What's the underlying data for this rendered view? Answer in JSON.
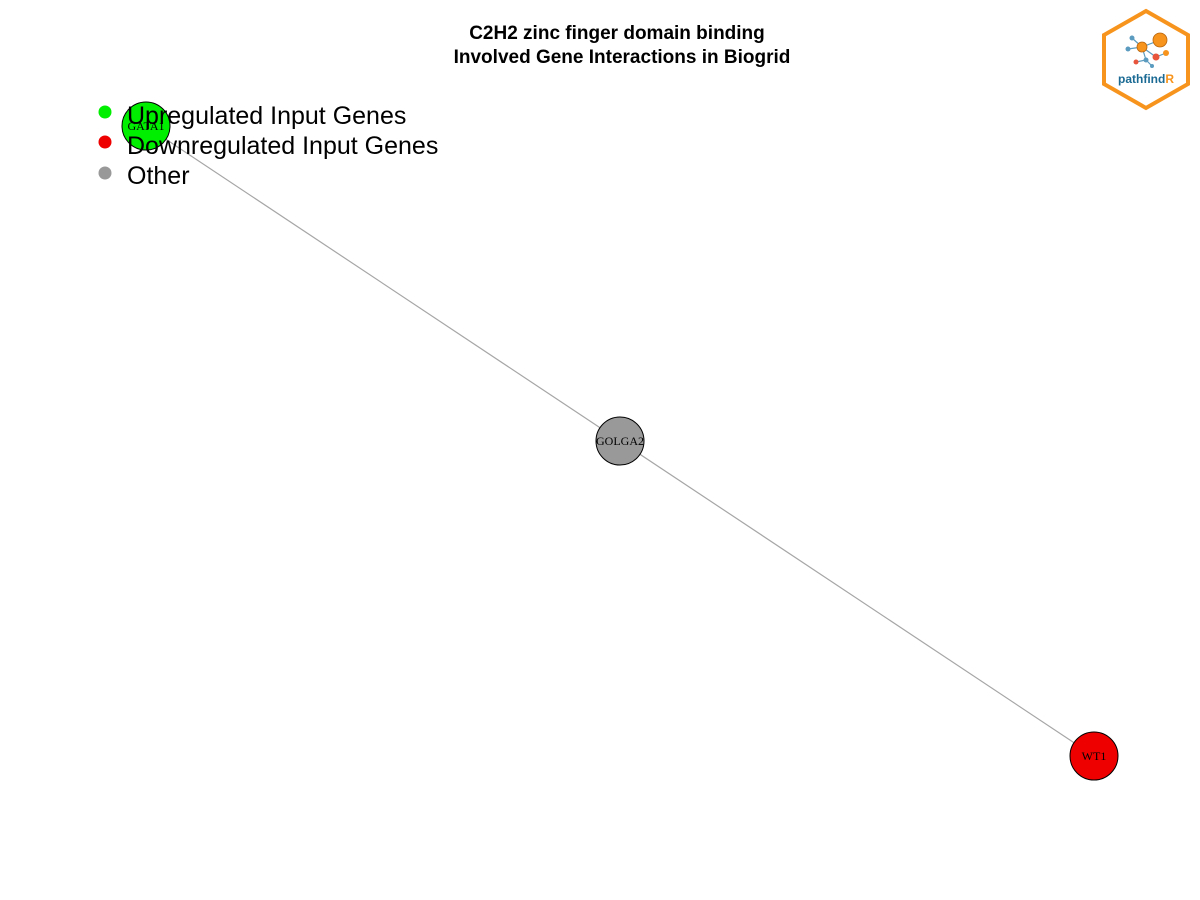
{
  "title": {
    "line1": "C2H2 zinc finger domain binding",
    "line2": "Involved Gene Interactions in Biogrid"
  },
  "legend": [
    {
      "label": "Upregulated Input Genes",
      "color": "#00ee00"
    },
    {
      "label": "Downregulated Input Genes",
      "color": "#ee0000"
    },
    {
      "label": "Other",
      "color": "#999999"
    }
  ],
  "network": {
    "nodes": [
      {
        "id": "GATA1",
        "label": "GATA1",
        "group": "upregulated"
      },
      {
        "id": "GOLGA2",
        "label": "GOLGA2",
        "group": "other"
      },
      {
        "id": "WT1",
        "label": "WT1",
        "group": "downregulated"
      }
    ],
    "edges": [
      {
        "source": "GATA1",
        "target": "GOLGA2"
      },
      {
        "source": "GOLGA2",
        "target": "WT1"
      }
    ],
    "colors": {
      "upregulated": "#00ee00",
      "downregulated": "#ee0000",
      "other": "#999999",
      "edge": "#a6a6a6",
      "node_border": "#000000"
    }
  },
  "logo": {
    "text_main": "pathfind",
    "text_accent": "R",
    "border_color": "#f7941d",
    "main_color": "#1a6a94",
    "accent_color": "#f7941d"
  }
}
